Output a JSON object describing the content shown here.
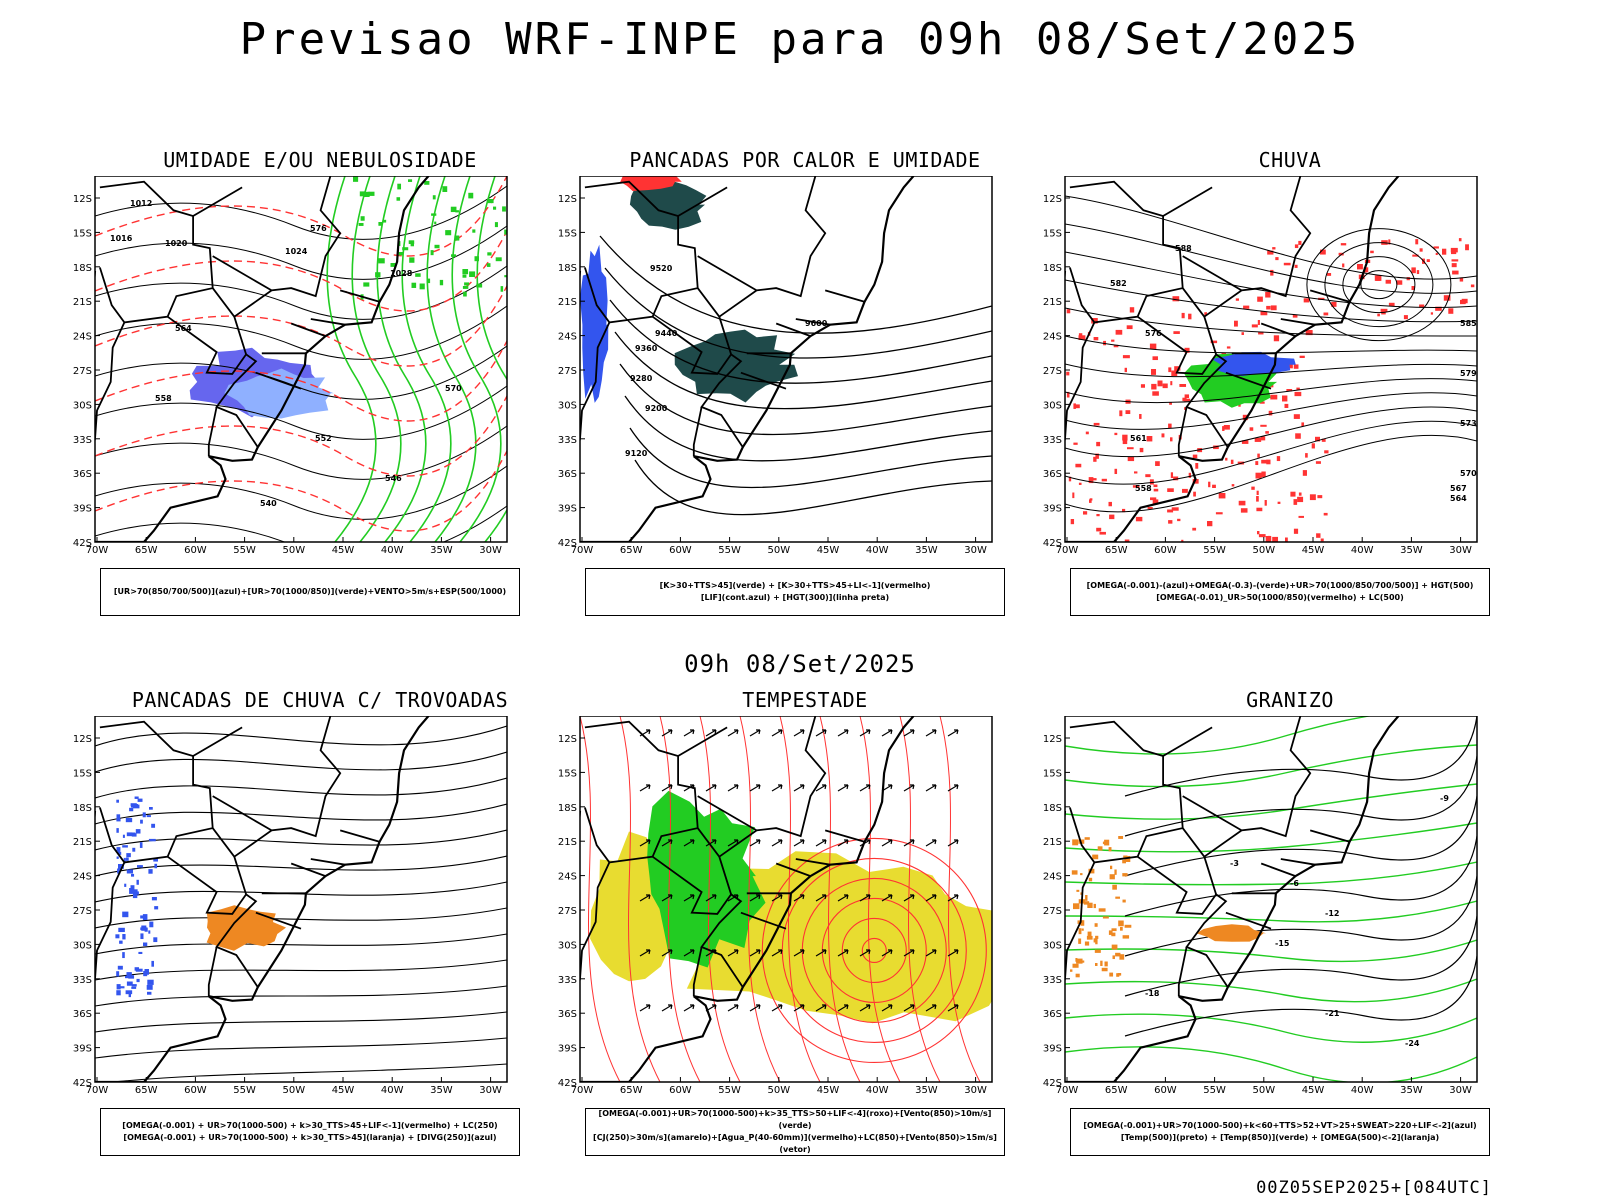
{
  "title": "Previsao WRF-INPE  para 09h 08/Set/2025",
  "mid_title": "09h 08/Set/2025",
  "footer": "00Z05SEP2025+[084UTC]",
  "axes": {
    "lat_labels": [
      "12S",
      "15S",
      "18S",
      "21S",
      "24S",
      "27S",
      "30S",
      "33S",
      "36S",
      "39S",
      "42S"
    ],
    "lon_labels": [
      "70W",
      "65W",
      "60W",
      "55W",
      "50W",
      "45W",
      "40W",
      "35W",
      "30W"
    ]
  },
  "colors": {
    "green": "#22cc22",
    "red": "#ff3333",
    "blue": "#3355ee",
    "darkteal": "#1f4a4a",
    "orange": "#ee8822",
    "yellow": "#e8dc30",
    "purple": "#6666ee"
  },
  "panels": [
    {
      "title": "UMIDADE E/OU NEBULOSIDADE",
      "legend": [
        "[UR>70(850/700/500)](azul)+[UR>70(1000/850)](verde)+VENTO>5m/s+ESP(500/1000)"
      ],
      "contour_labels": [
        "1012",
        "1016",
        "1020",
        "1024",
        "1028",
        "570",
        "576",
        "564",
        "558",
        "552",
        "546",
        "540"
      ]
    },
    {
      "title": "PANCADAS POR CALOR E UMIDADE",
      "legend": [
        "[K>30+TTS>45](verde) + [K>30+TTS>45+LI<-1](vermelho)",
        "[LIF](cont.azul) + [HGT(300)](linha preta)"
      ],
      "contour_labels": [
        "9600",
        "9520",
        "9440",
        "9360",
        "9280",
        "9200",
        "9120"
      ]
    },
    {
      "title": "CHUVA",
      "legend": [
        "[OMEGA(-0.001)-(azul)+OMEGA(-0.3)-(verde)+UR>70(1000/850/700/500)] + HGT(500)",
        "[OMEGA(-0.01)_UR>50(1000/850)(vermelho) + LC(500)"
      ],
      "contour_labels": [
        "588",
        "582",
        "576",
        "570",
        "567",
        "564",
        "561",
        "558",
        "585",
        "579",
        "573"
      ]
    },
    {
      "title": "PANCADAS DE CHUVA C/ TROVOADAS",
      "legend": [
        "[OMEGA(-0.001) + UR>70(1000-500) + k>30_TTS>45+LIF<-1](vermelho) + LC(250)",
        "[OMEGA(-0.001) + UR>70(1000-500) + k>30_TTS>45](laranja) + [DIVG(250)](azul)"
      ],
      "contour_labels": []
    },
    {
      "title": "TEMPESTADE",
      "legend": [
        "[OMEGA(-0.001)+UR>70(1000-500)+k>35_TTS>50+LIF<-4](roxo)+[Vento(850)>10m/s](verde)",
        "[CJ(250)>30m/s](amarelo)+[Agua_P(40-60mm)](vermelho)+LC(850)+[Vento(850)>15m/s](vetor)"
      ],
      "contour_labels": []
    },
    {
      "title": "GRANIZO",
      "legend": [
        "[OMEGA(-0.001)+UR>70(1000-500)+k<60+TTS>52+VT>25+SWEAT>220+LIF<-2](azul)",
        "[Temp(500)](preto) + [Temp(850)](verde) + [OMEGA(500)<-2](laranja)"
      ],
      "contour_labels": [
        "-3",
        "-6",
        "-9",
        "-12",
        "-15",
        "-18",
        "-21",
        "-24"
      ]
    }
  ]
}
